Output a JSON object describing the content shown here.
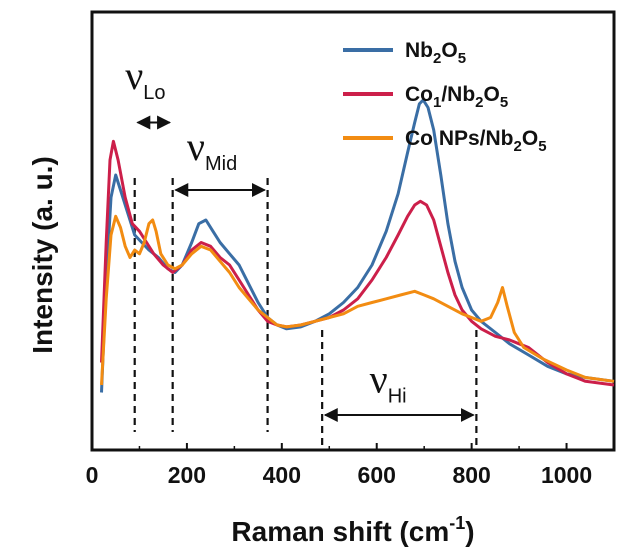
{
  "chart_data": {
    "type": "line",
    "xlabel": "Raman shift (cm",
    "xlabel_sup": "-1",
    "xlabel_end": ")",
    "ylabel": "Intensity (a. u.)",
    "xlim": [
      0,
      1100
    ],
    "ylim": [
      0,
      1
    ],
    "x_ticks": [
      {
        "value": 0,
        "label": "0"
      },
      {
        "value": 200,
        "label": "200"
      },
      {
        "value": 400,
        "label": "400"
      },
      {
        "value": 600,
        "label": "600"
      },
      {
        "value": 800,
        "label": "800"
      },
      {
        "value": 1000,
        "label": "1000"
      }
    ],
    "legend_position": "top-right",
    "series": [
      {
        "name": "Nb2O5",
        "legend_parts": [
          [
            "Nb",
            ""
          ],
          [
            "2",
            "sub"
          ],
          [
            "O",
            ""
          ],
          [
            "5",
            "sub"
          ]
        ],
        "color": "#3a6ea5",
        "points": [
          [
            20,
            0.1
          ],
          [
            30,
            0.4
          ],
          [
            40,
            0.62
          ],
          [
            50,
            0.68
          ],
          [
            60,
            0.64
          ],
          [
            75,
            0.58
          ],
          [
            90,
            0.52
          ],
          [
            105,
            0.5
          ],
          [
            120,
            0.48
          ],
          [
            140,
            0.46
          ],
          [
            160,
            0.43
          ],
          [
            175,
            0.42
          ],
          [
            190,
            0.44
          ],
          [
            210,
            0.5
          ],
          [
            225,
            0.55
          ],
          [
            240,
            0.56
          ],
          [
            255,
            0.53
          ],
          [
            270,
            0.5
          ],
          [
            290,
            0.47
          ],
          [
            310,
            0.44
          ],
          [
            330,
            0.39
          ],
          [
            350,
            0.34
          ],
          [
            370,
            0.3
          ],
          [
            390,
            0.28
          ],
          [
            410,
            0.27
          ],
          [
            440,
            0.275
          ],
          [
            470,
            0.29
          ],
          [
            500,
            0.31
          ],
          [
            530,
            0.34
          ],
          [
            560,
            0.38
          ],
          [
            590,
            0.44
          ],
          [
            620,
            0.53
          ],
          [
            645,
            0.63
          ],
          [
            665,
            0.74
          ],
          [
            680,
            0.82
          ],
          [
            690,
            0.87
          ],
          [
            698,
            0.88
          ],
          [
            708,
            0.86
          ],
          [
            720,
            0.8
          ],
          [
            735,
            0.68
          ],
          [
            750,
            0.55
          ],
          [
            765,
            0.45
          ],
          [
            780,
            0.38
          ],
          [
            800,
            0.32
          ],
          [
            820,
            0.29
          ],
          [
            850,
            0.26
          ],
          [
            880,
            0.23
          ],
          [
            920,
            0.2
          ],
          [
            960,
            0.17
          ],
          [
            1000,
            0.15
          ],
          [
            1040,
            0.14
          ],
          [
            1100,
            0.13
          ]
        ]
      },
      {
        "name": "Co1/Nb2O5",
        "legend_parts": [
          [
            "Co",
            ""
          ],
          [
            "1",
            "sub"
          ],
          [
            "/Nb",
            ""
          ],
          [
            "2",
            "sub"
          ],
          [
            "O",
            ""
          ],
          [
            "5",
            "sub"
          ]
        ],
        "color": "#cc1f4a",
        "points": [
          [
            20,
            0.18
          ],
          [
            30,
            0.5
          ],
          [
            38,
            0.72
          ],
          [
            45,
            0.77
          ],
          [
            55,
            0.72
          ],
          [
            70,
            0.62
          ],
          [
            85,
            0.55
          ],
          [
            100,
            0.53
          ],
          [
            115,
            0.5
          ],
          [
            130,
            0.47
          ],
          [
            150,
            0.44
          ],
          [
            170,
            0.42
          ],
          [
            190,
            0.44
          ],
          [
            210,
            0.48
          ],
          [
            230,
            0.5
          ],
          [
            250,
            0.49
          ],
          [
            270,
            0.46
          ],
          [
            290,
            0.44
          ],
          [
            310,
            0.4
          ],
          [
            330,
            0.36
          ],
          [
            350,
            0.32
          ],
          [
            370,
            0.29
          ],
          [
            390,
            0.28
          ],
          [
            410,
            0.275
          ],
          [
            440,
            0.28
          ],
          [
            470,
            0.29
          ],
          [
            500,
            0.3
          ],
          [
            530,
            0.32
          ],
          [
            560,
            0.35
          ],
          [
            590,
            0.4
          ],
          [
            620,
            0.46
          ],
          [
            645,
            0.52
          ],
          [
            665,
            0.57
          ],
          [
            680,
            0.6
          ],
          [
            692,
            0.61
          ],
          [
            705,
            0.6
          ],
          [
            720,
            0.56
          ],
          [
            735,
            0.49
          ],
          [
            750,
            0.42
          ],
          [
            765,
            0.36
          ],
          [
            780,
            0.32
          ],
          [
            800,
            0.29
          ],
          [
            820,
            0.27
          ],
          [
            850,
            0.25
          ],
          [
            880,
            0.24
          ],
          [
            900,
            0.23
          ],
          [
            920,
            0.22
          ],
          [
            960,
            0.18
          ],
          [
            1000,
            0.15
          ],
          [
            1040,
            0.13
          ],
          [
            1100,
            0.12
          ]
        ]
      },
      {
        "name": "Co NPs/Nb2O5",
        "legend_parts": [
          [
            "Co NPs/Nb",
            ""
          ],
          [
            "2",
            "sub"
          ],
          [
            "O",
            ""
          ],
          [
            "5",
            "sub"
          ]
        ],
        "color": "#f28c12",
        "points": [
          [
            20,
            0.12
          ],
          [
            30,
            0.35
          ],
          [
            40,
            0.52
          ],
          [
            50,
            0.57
          ],
          [
            60,
            0.54
          ],
          [
            70,
            0.49
          ],
          [
            80,
            0.46
          ],
          [
            90,
            0.48
          ],
          [
            100,
            0.47
          ],
          [
            110,
            0.5
          ],
          [
            120,
            0.55
          ],
          [
            128,
            0.56
          ],
          [
            135,
            0.53
          ],
          [
            145,
            0.47
          ],
          [
            160,
            0.44
          ],
          [
            175,
            0.43
          ],
          [
            190,
            0.44
          ],
          [
            210,
            0.47
          ],
          [
            230,
            0.49
          ],
          [
            250,
            0.48
          ],
          [
            270,
            0.45
          ],
          [
            290,
            0.42
          ],
          [
            310,
            0.38
          ],
          [
            330,
            0.35
          ],
          [
            350,
            0.32
          ],
          [
            370,
            0.3
          ],
          [
            390,
            0.28
          ],
          [
            410,
            0.275
          ],
          [
            440,
            0.28
          ],
          [
            470,
            0.29
          ],
          [
            500,
            0.3
          ],
          [
            530,
            0.31
          ],
          [
            560,
            0.33
          ],
          [
            590,
            0.34
          ],
          [
            620,
            0.35
          ],
          [
            650,
            0.36
          ],
          [
            680,
            0.37
          ],
          [
            700,
            0.36
          ],
          [
            720,
            0.35
          ],
          [
            750,
            0.33
          ],
          [
            780,
            0.31
          ],
          [
            800,
            0.3
          ],
          [
            820,
            0.29
          ],
          [
            840,
            0.3
          ],
          [
            855,
            0.34
          ],
          [
            865,
            0.38
          ],
          [
            875,
            0.33
          ],
          [
            890,
            0.26
          ],
          [
            910,
            0.22
          ],
          [
            950,
            0.19
          ],
          [
            1000,
            0.16
          ],
          [
            1040,
            0.14
          ],
          [
            1100,
            0.13
          ]
        ]
      }
    ],
    "annotations": {
      "dashed_lines": [
        90,
        170,
        370,
        485,
        810
      ],
      "regions": [
        {
          "symbol": "ν",
          "sub": "Lo",
          "from": 90,
          "to": 170,
          "arrow_y": 0.82,
          "label_x": 70,
          "label_y": 0.91
        },
        {
          "symbol": "ν",
          "sub": "Mid",
          "from": 170,
          "to": 370,
          "arrow_y": 0.64,
          "label_x": 200,
          "label_y": 0.72
        },
        {
          "symbol": "ν",
          "sub": "Hi",
          "from": 485,
          "to": 810,
          "arrow_y": 0.04,
          "label_x": 585,
          "label_y": 0.1
        }
      ]
    }
  }
}
